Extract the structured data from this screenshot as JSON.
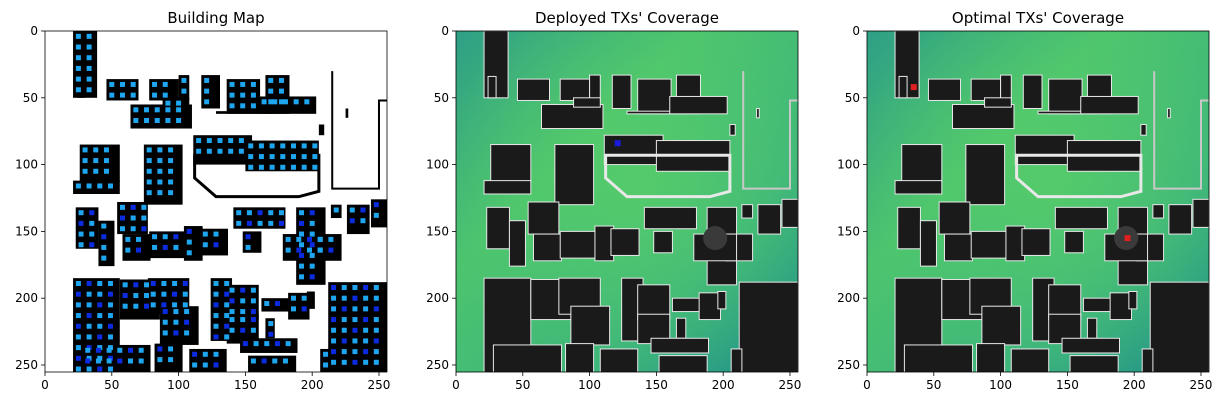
{
  "chart_data": [
    {
      "type": "heatmap",
      "title": "Building Map",
      "xlim": [
        0,
        256
      ],
      "ylim": [
        256,
        0
      ],
      "x_ticks": [
        0,
        50,
        100,
        150,
        200,
        250
      ],
      "y_ticks": [
        0,
        50,
        100,
        150,
        200,
        250
      ],
      "colors": {
        "background": "#ffffff",
        "building": "#000000",
        "candidate_tx": "#1ea7f0",
        "candidate_tx_dark": "#0b2be0"
      }
    },
    {
      "type": "heatmap",
      "title": "Deployed TXs' Coverage",
      "xlim": [
        0,
        256
      ],
      "ylim": [
        256,
        0
      ],
      "x_ticks": [
        0,
        50,
        100,
        150,
        200,
        250
      ],
      "y_ticks": [
        0,
        50,
        100,
        150,
        200,
        250
      ],
      "tx_markers": [
        {
          "x": 121,
          "y": 84
        }
      ],
      "colors": {
        "coverage_high": "#4cc46e",
        "coverage_low": "#1f9a8a",
        "building": "#1a1a1a",
        "outline": "#e8e8e8",
        "tx_marker": "#1a1adc"
      }
    },
    {
      "type": "heatmap",
      "title": "Optimal TXs' Coverage",
      "xlim": [
        0,
        256
      ],
      "ylim": [
        256,
        0
      ],
      "x_ticks": [
        0,
        50,
        100,
        150,
        200,
        250
      ],
      "y_ticks": [
        0,
        50,
        100,
        150,
        200,
        250
      ],
      "tx_markers": [
        {
          "x": 35,
          "y": 42
        },
        {
          "x": 195,
          "y": 155
        }
      ],
      "colors": {
        "coverage_high": "#4cc46e",
        "coverage_low": "#1f9a8a",
        "building": "#1a1a1a",
        "outline": "#e8e8e8",
        "tx_marker": "#e02020"
      }
    }
  ]
}
